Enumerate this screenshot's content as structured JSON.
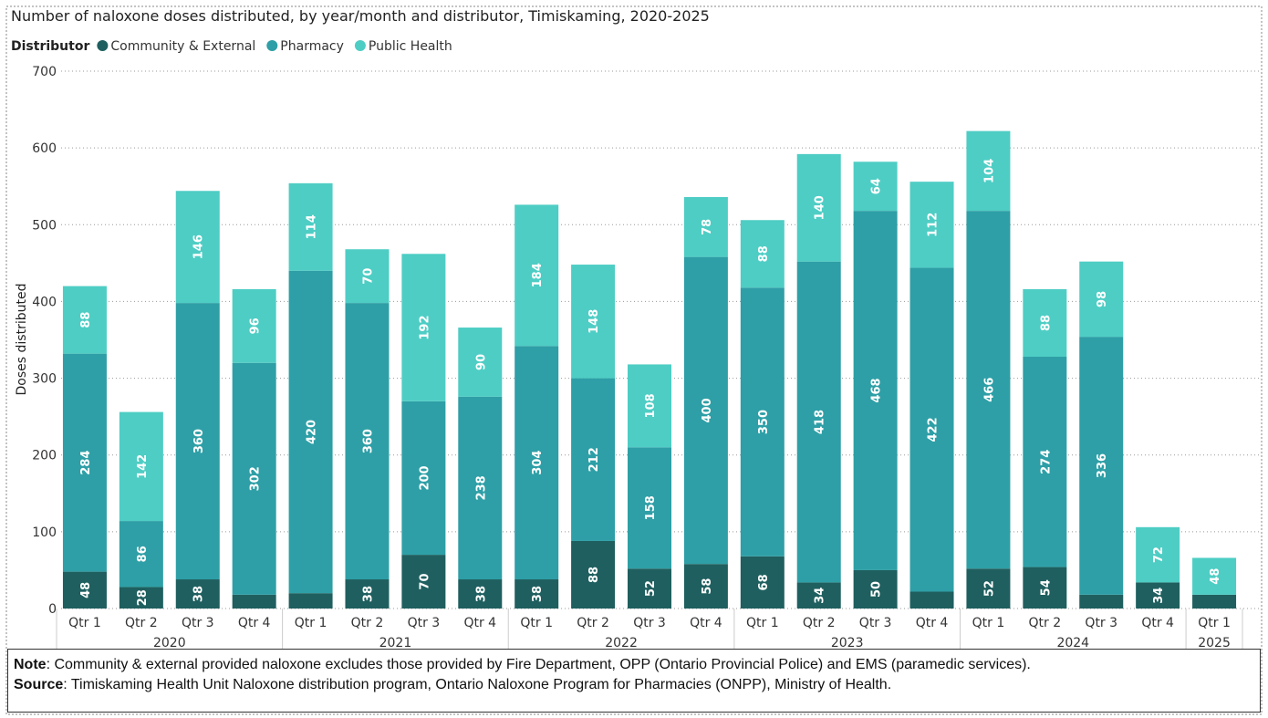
{
  "chart_data": {
    "type": "stacked-bar",
    "title": "Number of naloxone doses distributed, by year/month and distributor, Timiskaming, 2020-2025",
    "legend_title": "Distributor",
    "y_label": "Doses distributed",
    "groups": [
      {
        "name": "2020",
        "categories": [
          "Qtr 1",
          "Qtr 2",
          "Qtr 3",
          "Qtr 4"
        ]
      },
      {
        "name": "2021",
        "categories": [
          "Qtr 1",
          "Qtr 2",
          "Qtr 3",
          "Qtr 4"
        ]
      },
      {
        "name": "2022",
        "categories": [
          "Qtr 1",
          "Qtr 2",
          "Qtr 3",
          "Qtr 4"
        ]
      },
      {
        "name": "2023",
        "categories": [
          "Qtr 1",
          "Qtr 2",
          "Qtr 3",
          "Qtr 4"
        ]
      },
      {
        "name": "2024",
        "categories": [
          "Qtr 1",
          "Qtr 2",
          "Qtr 3",
          "Qtr 4"
        ]
      },
      {
        "name": "2025",
        "categories": [
          "Qtr 1"
        ]
      }
    ],
    "series": [
      {
        "name": "Community & External",
        "color": "#1f5f5f",
        "values": [
          48,
          28,
          38,
          18,
          20,
          38,
          70,
          38,
          38,
          88,
          52,
          58,
          68,
          34,
          50,
          22,
          52,
          54,
          18,
          34,
          18
        ],
        "value_labels": [
          "48",
          "28",
          "38",
          null,
          null,
          "38",
          "70",
          "38",
          "38",
          "88",
          "52",
          "58",
          "68",
          "34",
          "50",
          null,
          "52",
          "54",
          null,
          "34",
          null
        ]
      },
      {
        "name": "Pharmacy",
        "color": "#2e9fa6",
        "values": [
          284,
          86,
          360,
          302,
          420,
          360,
          200,
          238,
          304,
          212,
          158,
          400,
          350,
          418,
          468,
          422,
          466,
          274,
          336,
          null,
          null
        ],
        "value_labels": [
          "284",
          "86",
          "360",
          "302",
          "420",
          "360",
          "200",
          "238",
          "304",
          "212",
          "158",
          "400",
          "350",
          "418",
          "468",
          "422",
          "466",
          "274",
          "336",
          null,
          null
        ]
      },
      {
        "name": "Public Health",
        "color": "#4ecdc4",
        "values": [
          88,
          142,
          146,
          96,
          114,
          70,
          192,
          90,
          184,
          148,
          108,
          78,
          88,
          140,
          64,
          112,
          104,
          88,
          98,
          72,
          48
        ],
        "value_labels": [
          "88",
          "142",
          "146",
          "96",
          "114",
          "70",
          "192",
          "90",
          "184",
          "148",
          "108",
          "78",
          "88",
          "140",
          "64",
          "112",
          "104",
          "88",
          "98",
          "72",
          "48"
        ]
      }
    ],
    "ylim": [
      0,
      700
    ],
    "yticks": [
      0,
      100,
      200,
      300,
      400,
      500,
      600,
      700
    ],
    "grid": true
  },
  "notes": {
    "note_label": "Note",
    "note_text": ": Community & external provided naloxone excludes those provided by Fire Department, OPP (Ontario Provincial Police) and EMS (paramedic services).",
    "source_label": "Source",
    "source_text": ": Timiskaming Health Unit Naloxone distribution program, Ontario Naloxone Program for Pharmacies (ONPP), Ministry of Health."
  }
}
